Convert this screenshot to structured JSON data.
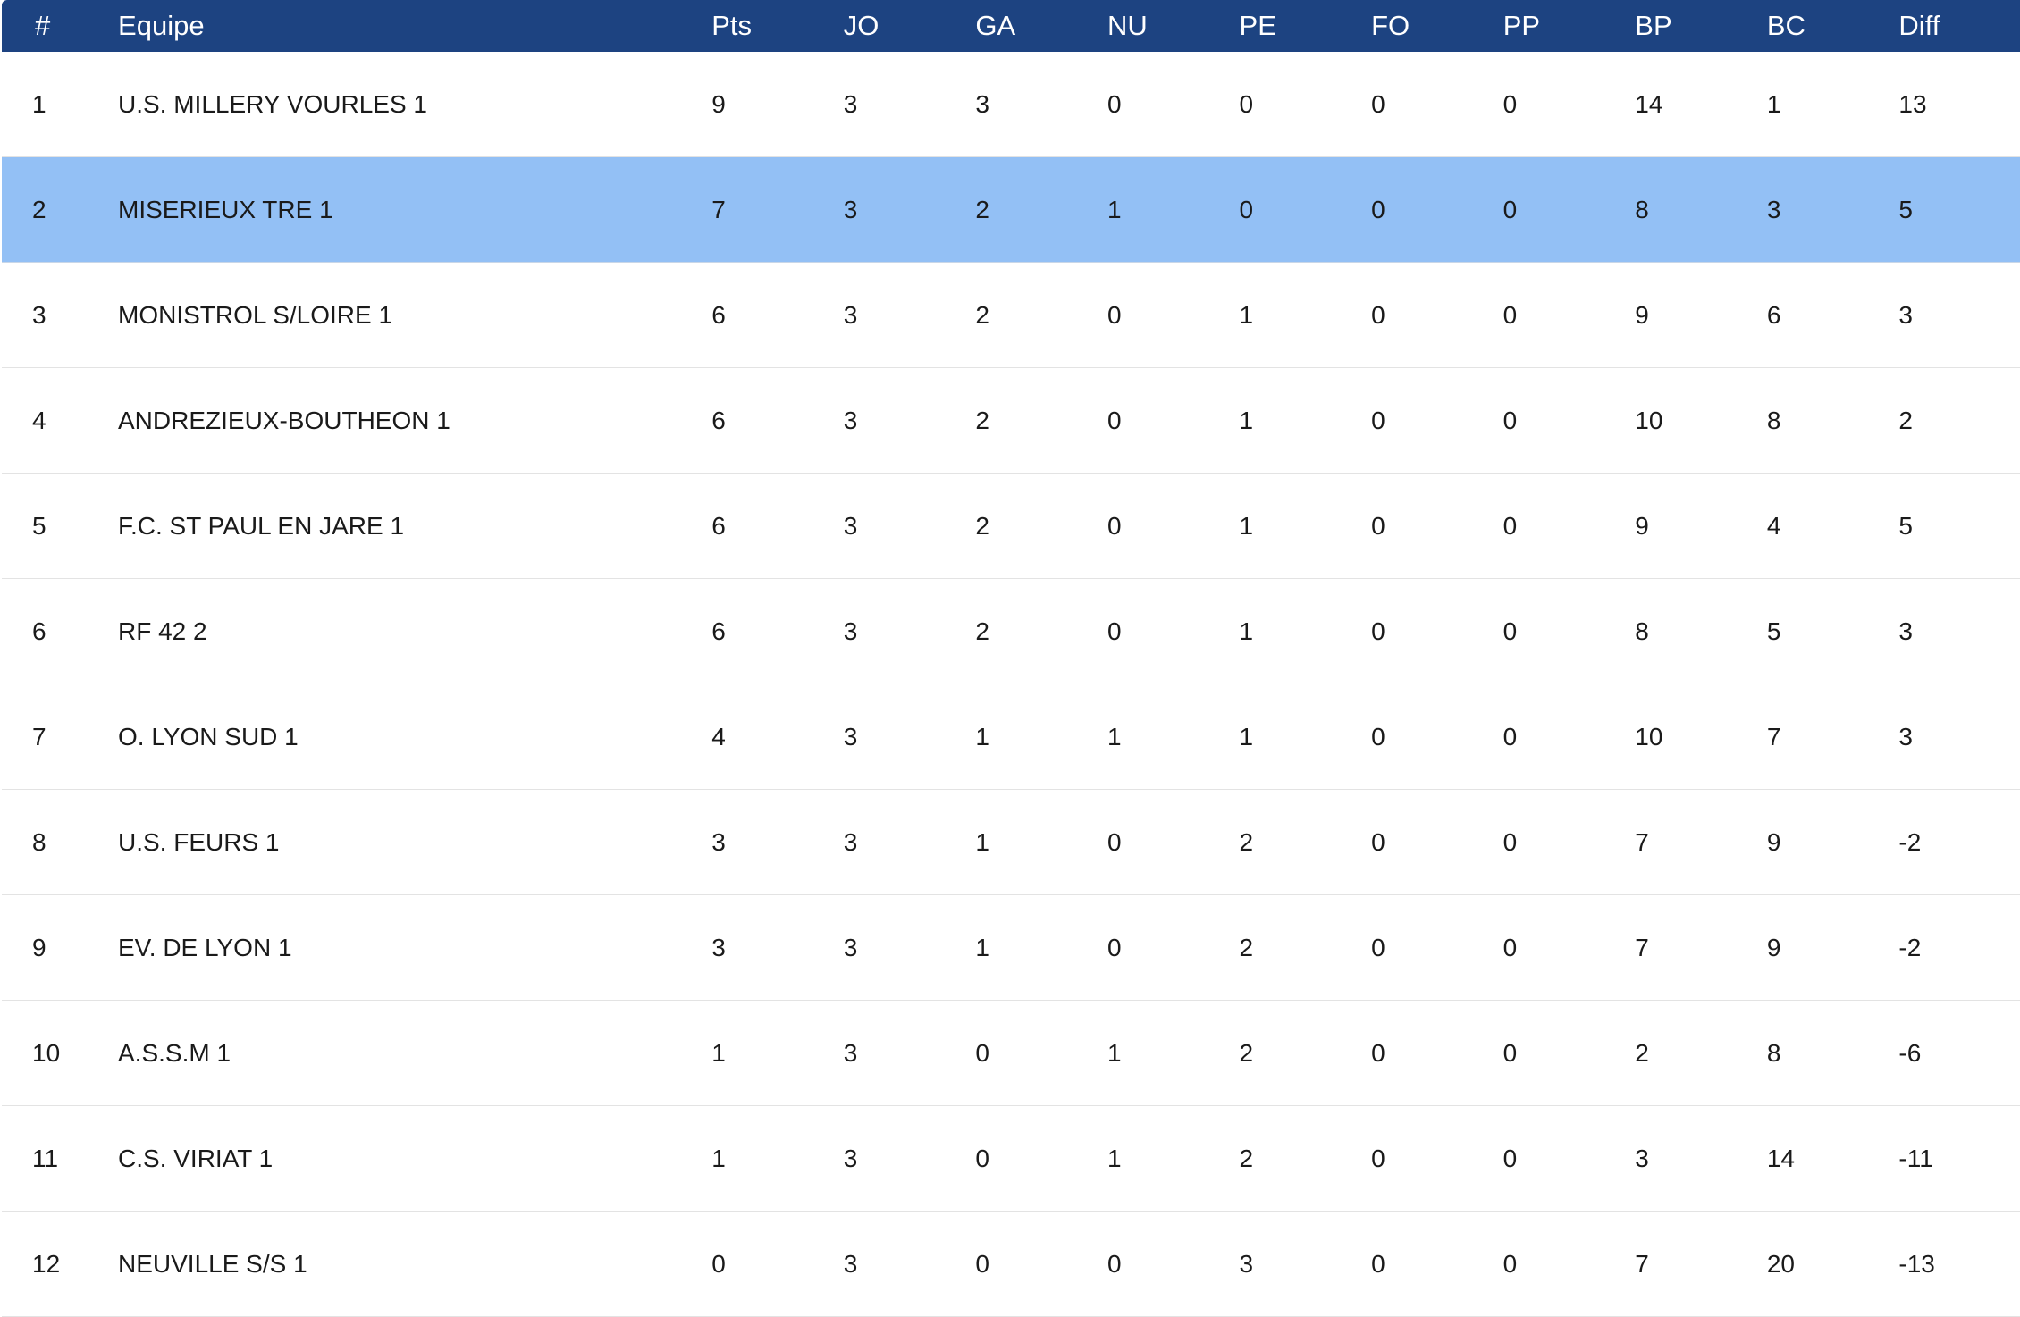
{
  "table": {
    "headers": {
      "rank": "#",
      "team": "Equipe",
      "pts": "Pts",
      "jo": "JO",
      "ga": "GA",
      "nu": "NU",
      "pe": "PE",
      "fo": "FO",
      "pp": "PP",
      "bp": "BP",
      "bc": "BC",
      "diff": "Diff"
    },
    "rows": [
      {
        "rank": "1",
        "team": "U.S. MILLERY VOURLES 1",
        "pts": "9",
        "jo": "3",
        "ga": "3",
        "nu": "0",
        "pe": "0",
        "fo": "0",
        "pp": "0",
        "bp": "14",
        "bc": "1",
        "diff": "13"
      },
      {
        "rank": "2",
        "team": "MISERIEUX TRE 1",
        "pts": "7",
        "jo": "3",
        "ga": "2",
        "nu": "1",
        "pe": "0",
        "fo": "0",
        "pp": "0",
        "bp": "8",
        "bc": "3",
        "diff": "5"
      },
      {
        "rank": "3",
        "team": "MONISTROL S/LOIRE 1",
        "pts": "6",
        "jo": "3",
        "ga": "2",
        "nu": "0",
        "pe": "1",
        "fo": "0",
        "pp": "0",
        "bp": "9",
        "bc": "6",
        "diff": "3"
      },
      {
        "rank": "4",
        "team": "ANDREZIEUX-BOUTHEON 1",
        "pts": "6",
        "jo": "3",
        "ga": "2",
        "nu": "0",
        "pe": "1",
        "fo": "0",
        "pp": "0",
        "bp": "10",
        "bc": "8",
        "diff": "2"
      },
      {
        "rank": "5",
        "team": "F.C. ST PAUL EN JARE 1",
        "pts": "6",
        "jo": "3",
        "ga": "2",
        "nu": "0",
        "pe": "1",
        "fo": "0",
        "pp": "0",
        "bp": "9",
        "bc": "4",
        "diff": "5"
      },
      {
        "rank": "6",
        "team": "RF 42 2",
        "pts": "6",
        "jo": "3",
        "ga": "2",
        "nu": "0",
        "pe": "1",
        "fo": "0",
        "pp": "0",
        "bp": "8",
        "bc": "5",
        "diff": "3"
      },
      {
        "rank": "7",
        "team": "O. LYON SUD 1",
        "pts": "4",
        "jo": "3",
        "ga": "1",
        "nu": "1",
        "pe": "1",
        "fo": "0",
        "pp": "0",
        "bp": "10",
        "bc": "7",
        "diff": "3"
      },
      {
        "rank": "8",
        "team": "U.S. FEURS 1",
        "pts": "3",
        "jo": "3",
        "ga": "1",
        "nu": "0",
        "pe": "2",
        "fo": "0",
        "pp": "0",
        "bp": "7",
        "bc": "9",
        "diff": "-2"
      },
      {
        "rank": "9",
        "team": "EV. DE LYON 1",
        "pts": "3",
        "jo": "3",
        "ga": "1",
        "nu": "0",
        "pe": "2",
        "fo": "0",
        "pp": "0",
        "bp": "7",
        "bc": "9",
        "diff": "-2"
      },
      {
        "rank": "10",
        "team": "A.S.S.M 1",
        "pts": "1",
        "jo": "3",
        "ga": "0",
        "nu": "1",
        "pe": "2",
        "fo": "0",
        "pp": "0",
        "bp": "2",
        "bc": "8",
        "diff": "-6"
      },
      {
        "rank": "11",
        "team": "C.S. VIRIAT 1",
        "pts": "1",
        "jo": "3",
        "ga": "0",
        "nu": "1",
        "pe": "2",
        "fo": "0",
        "pp": "0",
        "bp": "3",
        "bc": "14",
        "diff": "-11"
      },
      {
        "rank": "12",
        "team": "NEUVILLE S/S 1",
        "pts": "0",
        "jo": "3",
        "ga": "0",
        "nu": "0",
        "pe": "3",
        "fo": "0",
        "pp": "0",
        "bp": "7",
        "bc": "20",
        "diff": "-13"
      }
    ],
    "highlighted_rank": "2"
  },
  "colors": {
    "header_background": "#1d4381",
    "header_text": "#ffffff",
    "highlight_row": "#93c0f5",
    "row_background": "#ffffff",
    "row_border": "#e3e3e3"
  }
}
